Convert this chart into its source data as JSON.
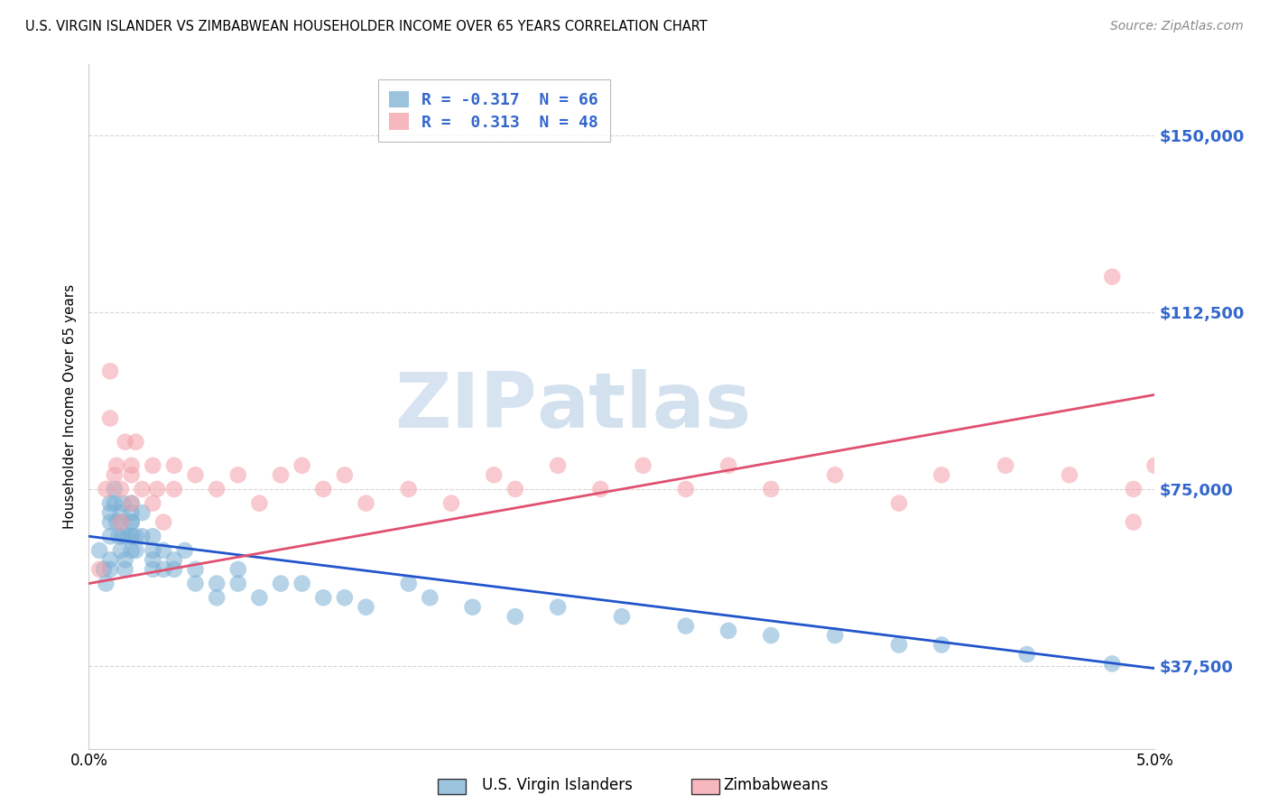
{
  "title": "U.S. VIRGIN ISLANDER VS ZIMBABWEAN HOUSEHOLDER INCOME OVER 65 YEARS CORRELATION CHART",
  "source": "Source: ZipAtlas.com",
  "ylabel": "Householder Income Over 65 years",
  "xlim": [
    0.0,
    0.05
  ],
  "ylim": [
    20000,
    165000
  ],
  "yticks": [
    37500,
    75000,
    112500,
    150000
  ],
  "ytick_labels": [
    "$37,500",
    "$75,000",
    "$112,500",
    "$150,000"
  ],
  "xticks": [
    0.0,
    0.01,
    0.02,
    0.03,
    0.04,
    0.05
  ],
  "xtick_labels": [
    "0.0%",
    "",
    "",
    "",
    "",
    "5.0%"
  ],
  "legend1_label": "R = -0.317  N = 66",
  "legend2_label": "R =  0.313  N = 48",
  "blue_color": "#7BAFD4",
  "pink_color": "#F4A0A8",
  "line_blue": "#2255CC",
  "line_pink": "#E05070",
  "ytick_color": "#3366CC",
  "watermark_zip": "ZIP",
  "watermark_atlas": "atlas",
  "blue_line_y0": 65000,
  "blue_line_y1": 37000,
  "pink_line_y0": 55000,
  "pink_line_y1": 95000,
  "blue_scatter_x": [
    0.0005,
    0.0007,
    0.0008,
    0.001,
    0.001,
    0.001,
    0.001,
    0.001,
    0.001,
    0.0012,
    0.0012,
    0.0013,
    0.0014,
    0.0015,
    0.0015,
    0.0015,
    0.0016,
    0.0016,
    0.0017,
    0.0017,
    0.0018,
    0.002,
    0.002,
    0.002,
    0.002,
    0.002,
    0.002,
    0.0022,
    0.0022,
    0.0025,
    0.0025,
    0.003,
    0.003,
    0.003,
    0.003,
    0.0035,
    0.0035,
    0.004,
    0.004,
    0.0045,
    0.005,
    0.005,
    0.006,
    0.006,
    0.007,
    0.007,
    0.008,
    0.009,
    0.01,
    0.011,
    0.012,
    0.013,
    0.015,
    0.016,
    0.018,
    0.02,
    0.022,
    0.025,
    0.028,
    0.03,
    0.032,
    0.035,
    0.038,
    0.04,
    0.044,
    0.048
  ],
  "blue_scatter_y": [
    62000,
    58000,
    55000,
    70000,
    72000,
    68000,
    65000,
    60000,
    58000,
    75000,
    72000,
    68000,
    65000,
    70000,
    68000,
    62000,
    72000,
    65000,
    60000,
    58000,
    65000,
    72000,
    68000,
    65000,
    62000,
    70000,
    68000,
    65000,
    62000,
    70000,
    65000,
    65000,
    62000,
    60000,
    58000,
    62000,
    58000,
    60000,
    58000,
    62000,
    58000,
    55000,
    55000,
    52000,
    58000,
    55000,
    52000,
    55000,
    55000,
    52000,
    52000,
    50000,
    55000,
    52000,
    50000,
    48000,
    50000,
    48000,
    46000,
    45000,
    44000,
    44000,
    42000,
    42000,
    40000,
    38000
  ],
  "pink_scatter_x": [
    0.0005,
    0.0008,
    0.001,
    0.001,
    0.0012,
    0.0013,
    0.0015,
    0.0015,
    0.0017,
    0.002,
    0.002,
    0.002,
    0.0022,
    0.0025,
    0.003,
    0.003,
    0.0032,
    0.0035,
    0.004,
    0.004,
    0.005,
    0.006,
    0.007,
    0.008,
    0.009,
    0.01,
    0.011,
    0.012,
    0.013,
    0.015,
    0.017,
    0.019,
    0.02,
    0.022,
    0.024,
    0.026,
    0.028,
    0.03,
    0.032,
    0.035,
    0.038,
    0.04,
    0.043,
    0.046,
    0.048,
    0.049,
    0.049,
    0.05
  ],
  "pink_scatter_y": [
    58000,
    75000,
    100000,
    90000,
    78000,
    80000,
    75000,
    68000,
    85000,
    80000,
    78000,
    72000,
    85000,
    75000,
    80000,
    72000,
    75000,
    68000,
    80000,
    75000,
    78000,
    75000,
    78000,
    72000,
    78000,
    80000,
    75000,
    78000,
    72000,
    75000,
    72000,
    78000,
    75000,
    80000,
    75000,
    80000,
    75000,
    80000,
    75000,
    78000,
    72000,
    78000,
    80000,
    78000,
    120000,
    68000,
    75000,
    80000
  ]
}
